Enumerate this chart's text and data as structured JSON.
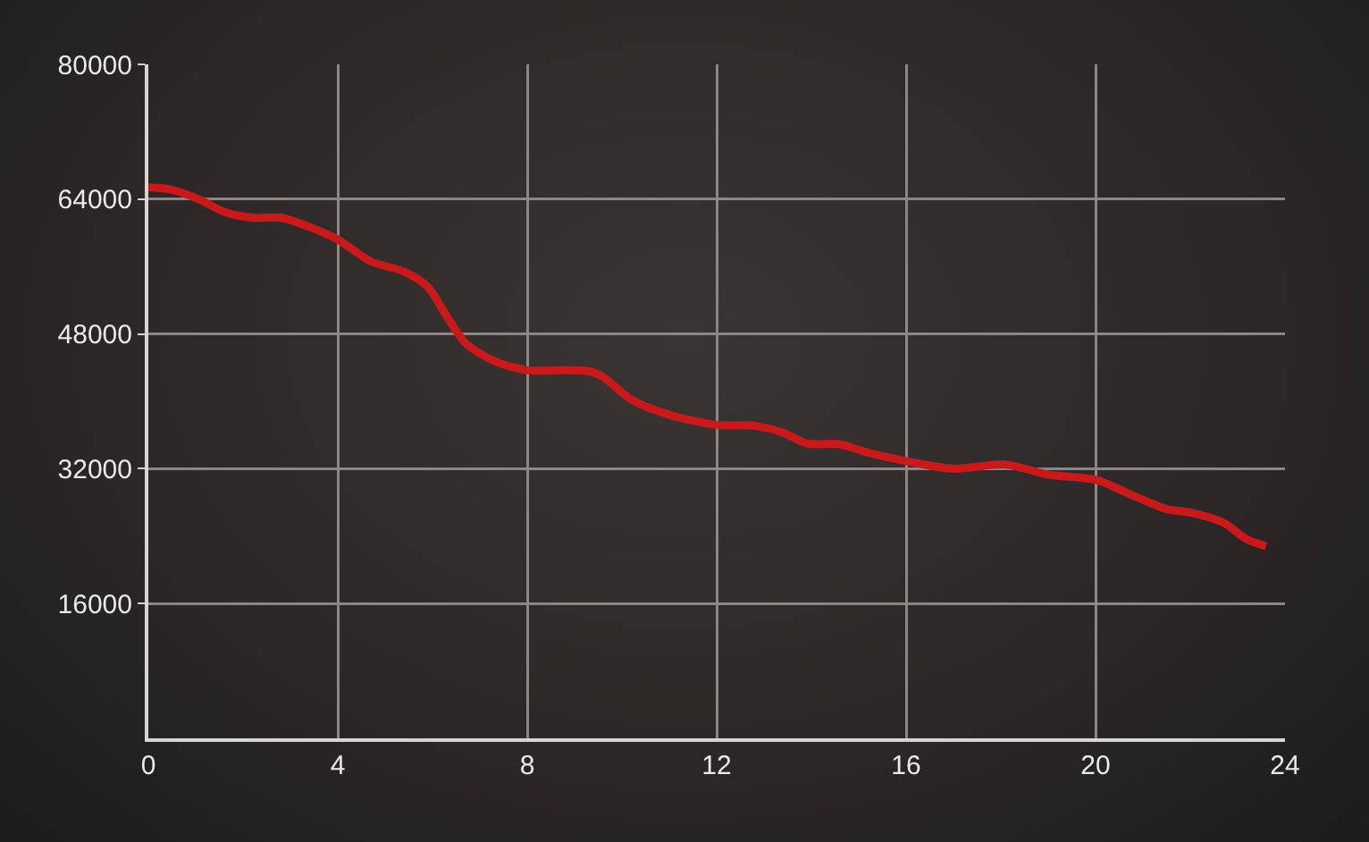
{
  "chart_data": {
    "type": "line",
    "x": [
      0,
      0.5,
      1.1,
      1.6,
      2.2,
      2.8,
      3.4,
      4.0,
      4.7,
      5.4,
      5.9,
      6.3,
      6.7,
      7.3,
      8.0,
      8.8,
      9.3,
      9.6,
      10.2,
      11.0,
      12.0,
      12.8,
      13.4,
      13.9,
      14.6,
      15.2,
      16.0,
      17.0,
      18.1,
      19.0,
      20.0,
      20.8,
      21.5,
      22.0,
      22.7,
      23.2,
      23.6
    ],
    "series": [
      {
        "color": "#c8191b",
        "values": [
          65400,
          65100,
          63900,
          62500,
          61800,
          61800,
          60700,
          59200,
          56600,
          55400,
          53600,
          50100,
          46900,
          44800,
          43700,
          43700,
          43600,
          42900,
          40200,
          38400,
          37200,
          37100,
          36300,
          35000,
          34900,
          33900,
          32900,
          32000,
          32500,
          31300,
          30700,
          28800,
          27200,
          26800,
          25600,
          23600,
          22800
        ]
      }
    ],
    "xlim": [
      0,
      24
    ],
    "xticks": [
      0,
      4,
      8,
      12,
      16,
      20,
      24
    ],
    "ylim": [
      0,
      80000
    ],
    "yticks": [
      16000,
      32000,
      48000,
      64000,
      80000
    ],
    "grid": true
  }
}
